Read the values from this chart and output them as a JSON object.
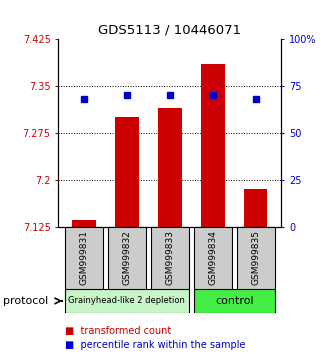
{
  "title": "GDS5113 / 10446071",
  "samples": [
    "GSM999831",
    "GSM999832",
    "GSM999833",
    "GSM999834",
    "GSM999835"
  ],
  "bar_values": [
    7.135,
    7.3,
    7.315,
    7.385,
    7.185
  ],
  "bar_base": 7.125,
  "percentile_values": [
    68,
    70,
    70,
    70,
    68
  ],
  "ylim_left": [
    7.125,
    7.425
  ],
  "ylim_right": [
    0,
    100
  ],
  "yticks_left": [
    7.125,
    7.2,
    7.275,
    7.35,
    7.425
  ],
  "yticks_right": [
    0,
    25,
    50,
    75,
    100
  ],
  "ytick_labels_left": [
    "7.125",
    "7.2",
    "7.275",
    "7.35",
    "7.425"
  ],
  "ytick_labels_right": [
    "0",
    "25",
    "50",
    "75",
    "100%"
  ],
  "bar_color": "#cc0000",
  "percentile_color": "#0000cc",
  "grid_color": "#000000",
  "group1_label": "Grainyhead-like 2 depletion",
  "group2_label": "control",
  "group1_color": "#c8f5c8",
  "group2_color": "#44ee44",
  "group1_samples": [
    0,
    1,
    2
  ],
  "group2_samples": [
    3,
    4
  ],
  "protocol_label": "protocol",
  "legend_bar_label": "transformed count",
  "legend_percentile_label": "percentile rank within the sample",
  "tick_label_box_color": "#cccccc",
  "bar_width": 0.55
}
